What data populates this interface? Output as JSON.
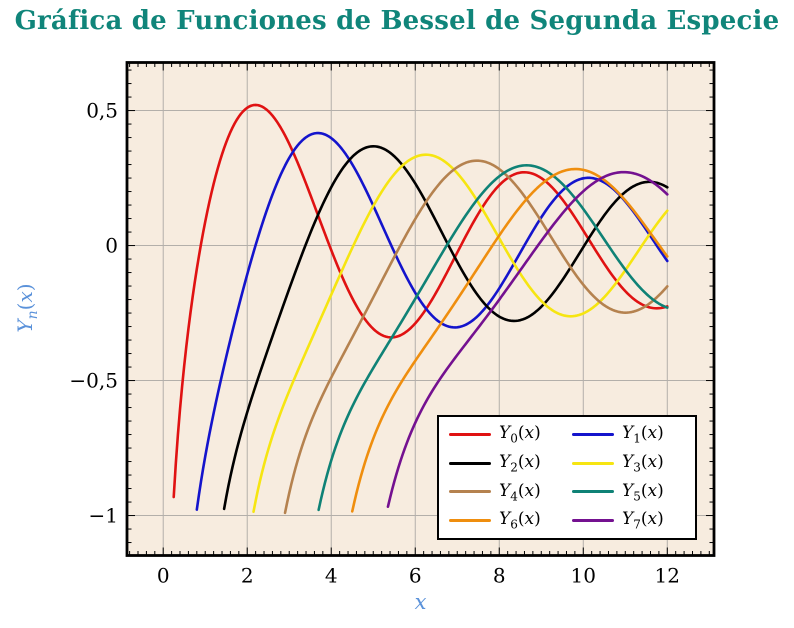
{
  "title": {
    "text": "Gráfica de Funciones de Bessel de Segunda Especie",
    "color": "#10857a"
  },
  "chart_data": {
    "type": "line",
    "title": "Gráfica de Funciones de Bessel de Segunda Especie",
    "xlabel": "x",
    "ylabel": "Y_n(x)",
    "function_family": "Bessel functions of the second kind Y_n(x), orders 0 to 7",
    "xlim": [
      -0.862,
      13.112
    ],
    "ylim": [
      -1.148,
      0.678
    ],
    "domain": [
      0.1,
      12
    ],
    "sample_step": 0.05,
    "clip_y_min": -1,
    "grid": "major",
    "x_ticks": {
      "values": [
        0,
        2,
        4,
        6,
        8,
        10,
        12
      ],
      "labels": [
        "0",
        "2",
        "4",
        "6",
        "8",
        "10",
        "12"
      ],
      "minor_step": 0.2
    },
    "y_ticks": {
      "values": [
        0.5,
        0,
        -0.5,
        -1
      ],
      "labels": [
        "0,5",
        "0",
        "−0,5",
        "−1"
      ],
      "minor_step": 0.05
    },
    "series": [
      {
        "name": "Y_0(x)",
        "order": 0,
        "color": "#e01212",
        "peak": {
          "x": 2.2,
          "y": 0.52
        }
      },
      {
        "name": "Y_1(x)",
        "order": 1,
        "color": "#1414cc",
        "peak": {
          "x": 3.68,
          "y": 0.42
        }
      },
      {
        "name": "Y_2(x)",
        "order": 2,
        "color": "#000000",
        "peak": {
          "x": 5.03,
          "y": 0.37
        }
      },
      {
        "name": "Y_3(x)",
        "order": 3,
        "color": "#f6e511",
        "peak": {
          "x": 6.37,
          "y": 0.33
        }
      },
      {
        "name": "Y_4(x)",
        "order": 4,
        "color": "#b5824f",
        "peak": {
          "x": 7.66,
          "y": 0.31
        }
      },
      {
        "name": "Y_5(x)",
        "order": 5,
        "color": "#0f8276",
        "peak": {
          "x": 8.93,
          "y": 0.29
        }
      },
      {
        "name": "Y_6(x)",
        "order": 6,
        "color": "#ef8e0e",
        "peak": {
          "x": 10.19,
          "y": 0.28
        }
      },
      {
        "name": "Y_7(x)",
        "order": 7,
        "color": "#741190",
        "peak": {
          "x": 11.44,
          "y": 0.27
        }
      }
    ],
    "legend": {
      "position": "south east",
      "columns": 2,
      "order": "row-major",
      "background": "#ffffff",
      "border_color": "#000000"
    },
    "colors": {
      "plot_background": "#f7ecdf",
      "grid": "#b3afaa",
      "axis_frame": "#000000",
      "tick_labels": "#000000",
      "axis_labels": "#5b92da"
    }
  }
}
